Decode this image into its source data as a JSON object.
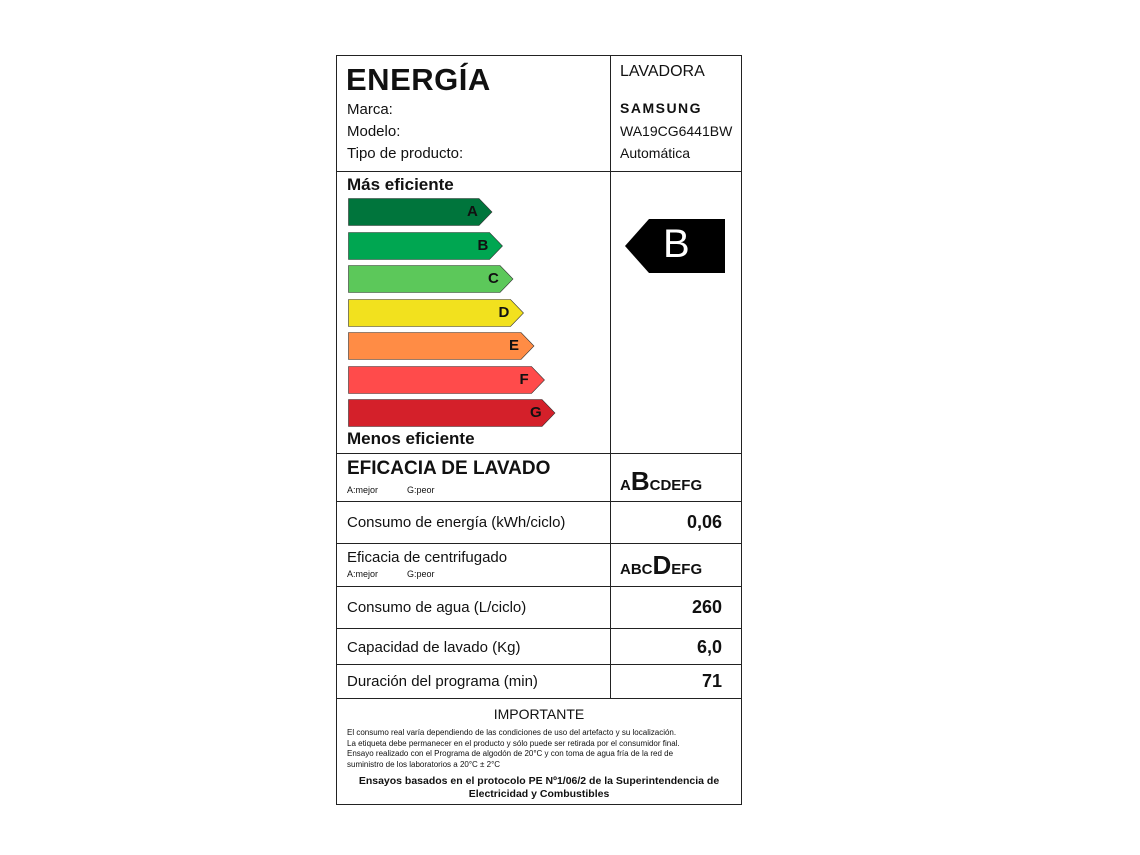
{
  "header": {
    "title": "ENERGÍA",
    "fields": [
      {
        "label": "Marca:",
        "value": "SAMSUNG"
      },
      {
        "label": "Modelo:",
        "value": "WA19CG6441BW"
      },
      {
        "label": "Tipo de producto:",
        "value": "Automática"
      }
    ],
    "product": "LAVADORA"
  },
  "scale": {
    "top_label": "Más eficiente",
    "bottom_label": "Menos eficiente",
    "classes": [
      {
        "letter": "A",
        "color": "#00753c"
      },
      {
        "letter": "B",
        "color": "#00a651"
      },
      {
        "letter": "C",
        "color": "#5cc85a"
      },
      {
        "letter": "D",
        "color": "#f2e11e"
      },
      {
        "letter": "E",
        "color": "#ff8c45"
      },
      {
        "letter": "F",
        "color": "#ff4b4b"
      },
      {
        "letter": "G",
        "color": "#d4202a"
      }
    ],
    "rating": "B"
  },
  "rows": {
    "wash": {
      "label": "EFICACIA DE LAVADO",
      "best": "A:mejor",
      "worst": "G:peor",
      "pre": "A",
      "grade": "B",
      "post": "CDEFG"
    },
    "energy": {
      "label": "Consumo de energía (kWh/ciclo)",
      "value": "0,06"
    },
    "spin": {
      "label": "Eficacia de centrifugado",
      "best": "A:mejor",
      "worst": "G:peor",
      "pre": "ABC",
      "grade": "D",
      "post": "EFG"
    },
    "water": {
      "label": "Consumo de agua (L/ciclo)",
      "value": "260"
    },
    "capacity": {
      "label": "Capacidad de lavado (Kg)",
      "value": "6,0"
    },
    "duration": {
      "label": "Duración del programa (min)",
      "value": "71"
    }
  },
  "important": {
    "title": "IMPORTANTE",
    "lines": [
      "El consumo real varía dependiendo de las condiciones de uso del artefacto y su localización.",
      "La etiqueta debe permanecer en el producto y sólo puede ser retirada por el consumidor final.",
      "Ensayo realizado con el Programa de algodón de 20°C y con toma de agua fría de la red de",
      "suministro de los laboratorios a 20°C ± 2°C"
    ],
    "protocol": "Ensayos basados en el protocolo PE Nº1/06/2 de la Superintendencia de Electricidad y Combustibles"
  }
}
